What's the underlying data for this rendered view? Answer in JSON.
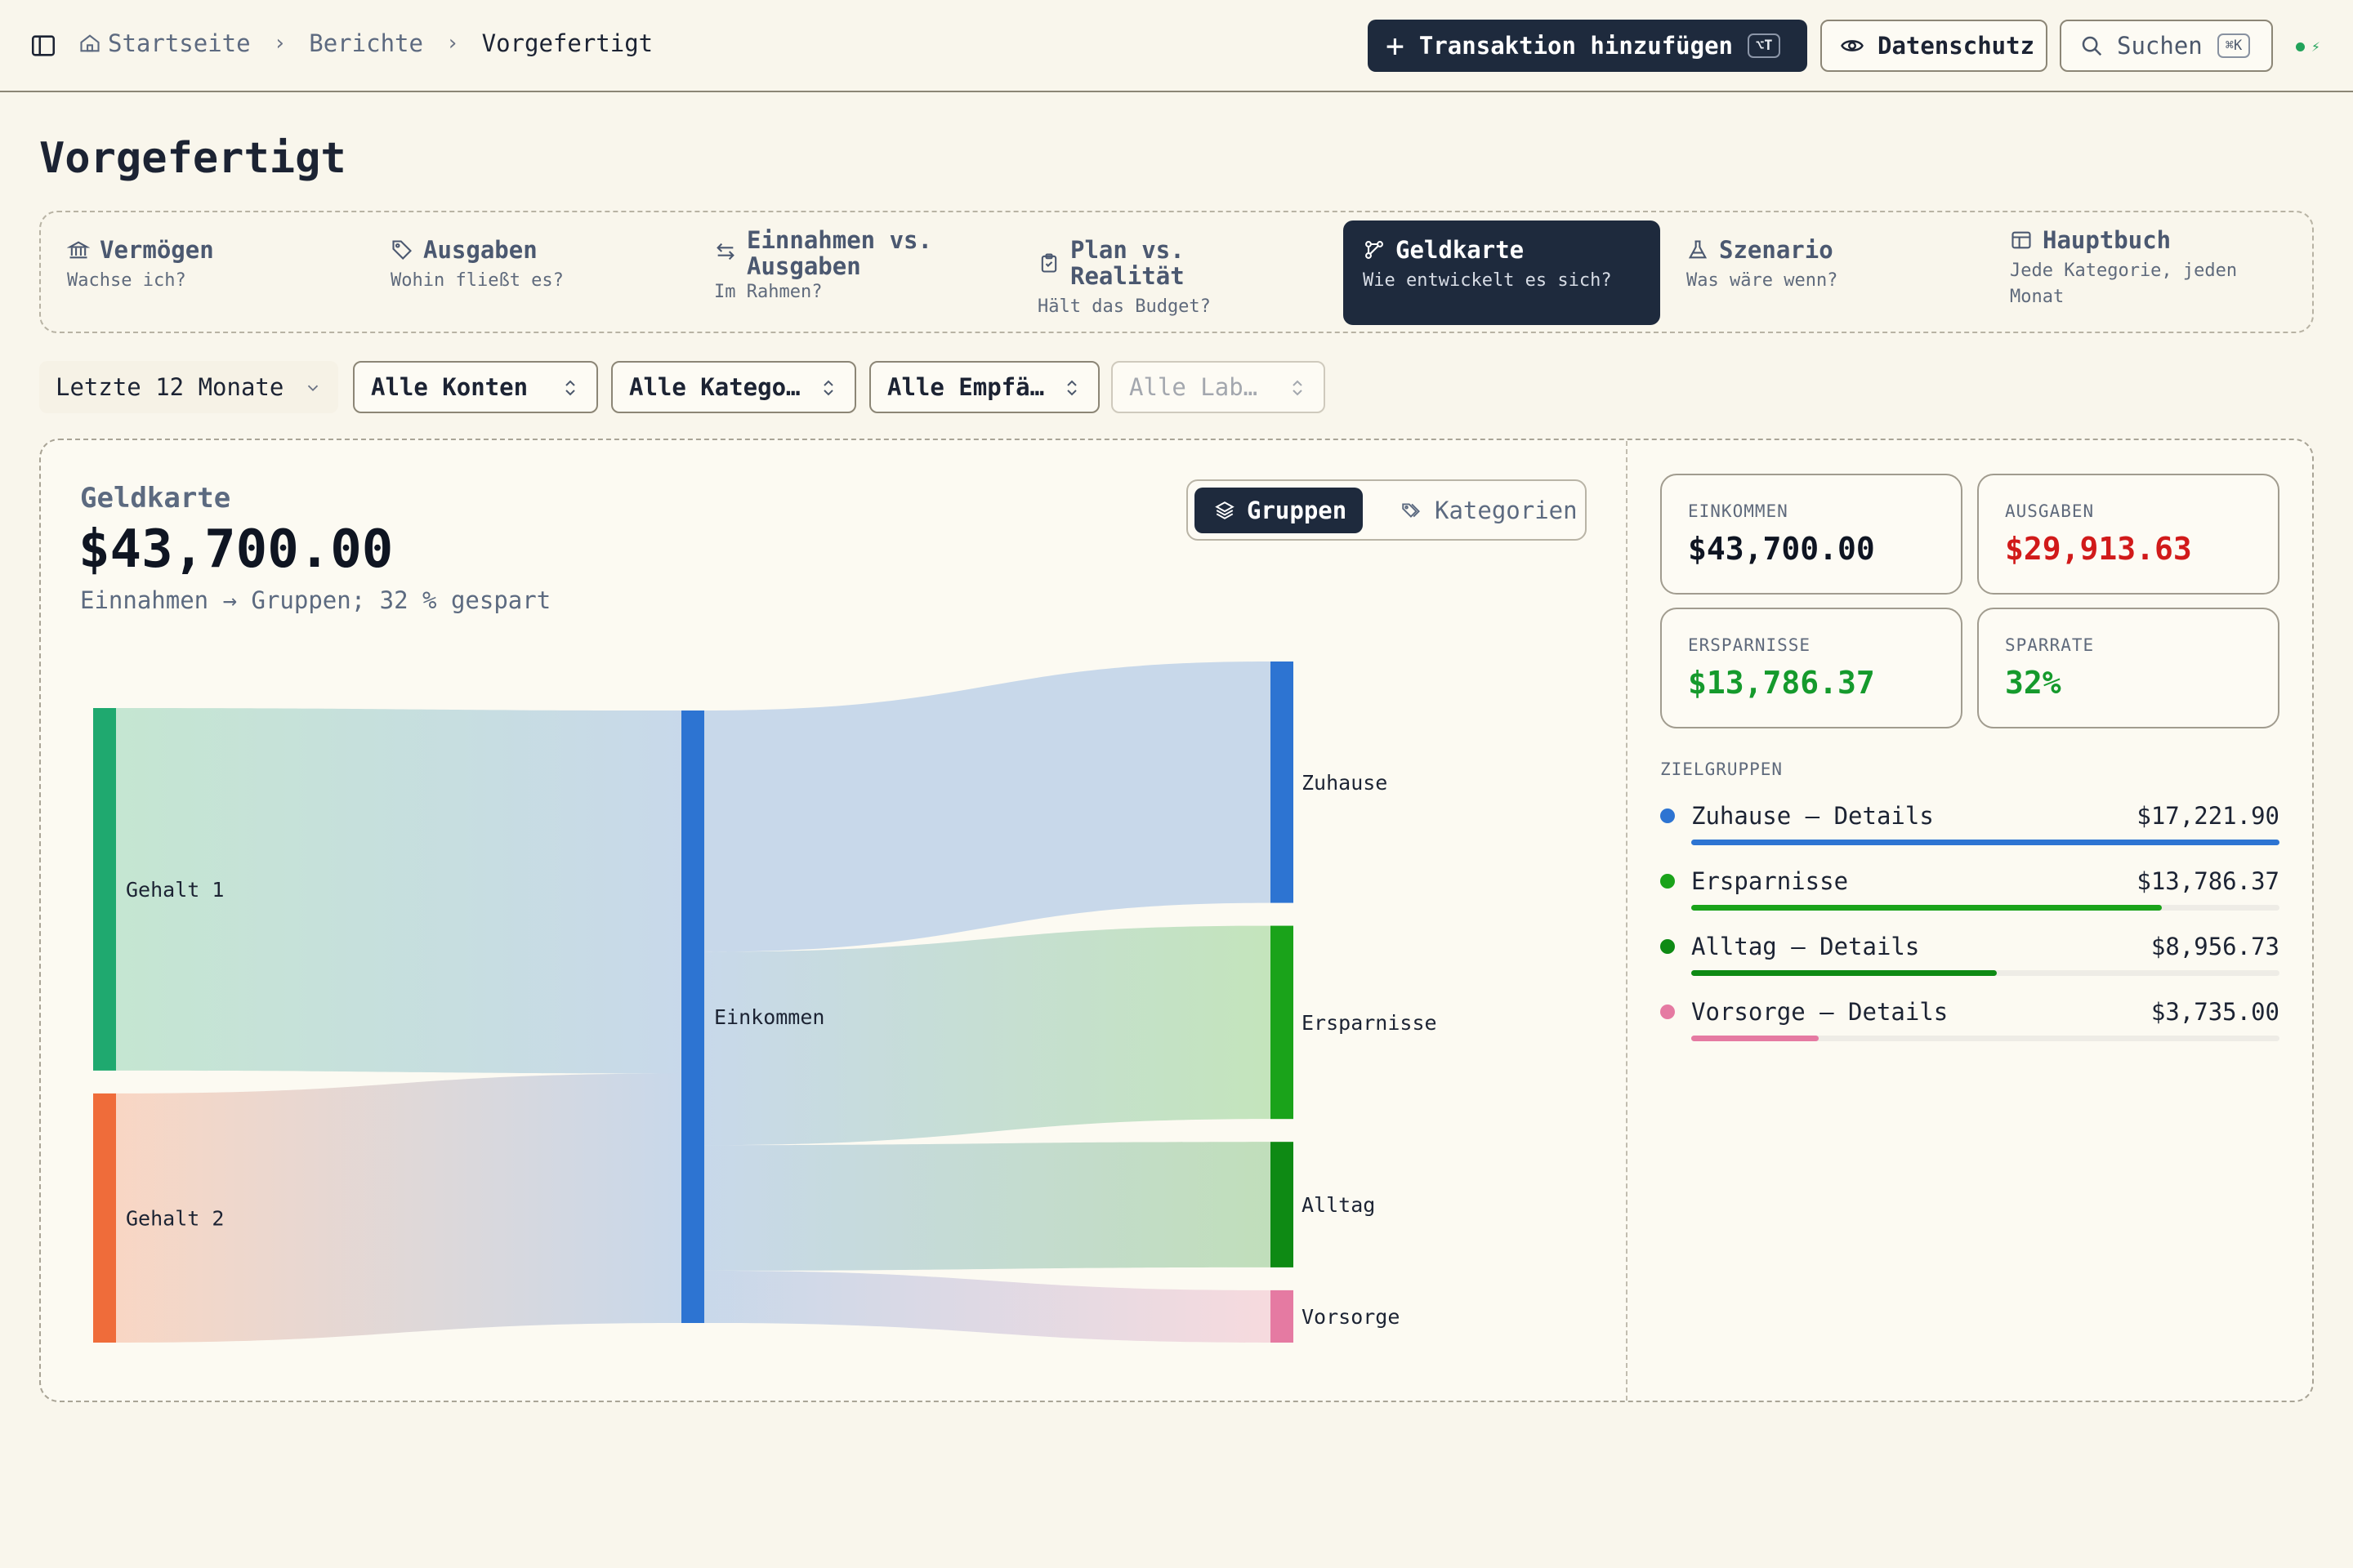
{
  "breadcrumb": [
    "Startseite",
    "Berichte",
    "Vorgefertigt"
  ],
  "header": {
    "add_transaction": "Transaktion hinzufügen",
    "add_transaction_kbd": "⌥T",
    "privacy": "Datenschutz",
    "search": "Suchen",
    "search_kbd": "⌘K"
  },
  "page_title": "Vorgefertigt",
  "report_tabs": [
    {
      "title": "Vermögen",
      "subtitle": "Wachse ich?",
      "icon": "bank-icon"
    },
    {
      "title": "Ausgaben",
      "subtitle": "Wohin fließt es?",
      "icon": "tag-icon"
    },
    {
      "title": "Einnahmen vs. Ausgaben",
      "subtitle": "Im Rahmen?",
      "icon": "arrows-icon"
    },
    {
      "title": "Plan vs. Realität",
      "subtitle": "Hält das Budget?",
      "icon": "clipboard-icon"
    },
    {
      "title": "Geldkarte",
      "subtitle": "Wie entwickelt es sich?",
      "icon": "flow-icon",
      "active": true
    },
    {
      "title": "Szenario",
      "subtitle": "Was wäre wenn?",
      "icon": "flask-icon"
    },
    {
      "title": "Hauptbuch",
      "subtitle": "Jede Kategorie, jeden Monat",
      "icon": "table-icon"
    }
  ],
  "filters": {
    "period": "Letzte 12 Monate",
    "accounts": "Alle Konten",
    "categories": "Alle Katego…",
    "payees": "Alle Empfä…",
    "labels": "Alle Lab…"
  },
  "moneymap": {
    "title": "Geldkarte",
    "amount": "$43,700.00",
    "subtitle": "Einnahmen → Gruppen; 32 % gespart",
    "toggle_groups": "Gruppen",
    "toggle_categories": "Kategorien"
  },
  "chart_data": {
    "type": "sankey",
    "sources": [
      {
        "name": "Gehalt 1",
        "value": 25900,
        "color": "#1fa96f"
      },
      {
        "name": "Gehalt 2",
        "value": 17800,
        "color": "#ef6c3a"
      }
    ],
    "hub": {
      "name": "Einkommen",
      "value": 43700,
      "color": "#2d74d2"
    },
    "targets": [
      {
        "name": "Zuhause",
        "value": 17221.9,
        "color": "#2d74d2"
      },
      {
        "name": "Ersparnisse",
        "value": 13786.37,
        "color": "#1aa31a"
      },
      {
        "name": "Alltag",
        "value": 8956.73,
        "color": "#0e8a14"
      },
      {
        "name": "Vorsorge",
        "value": 3735.0,
        "color": "#e57aa2"
      }
    ]
  },
  "stats": {
    "income_label": "EINKOMMEN",
    "income": "$43,700.00",
    "expenses_label": "AUSGABEN",
    "expenses": "$29,913.63",
    "savings_label": "ERSPARNISSE",
    "savings": "$13,786.37",
    "rate_label": "SPARRATE",
    "rate": "32%"
  },
  "target_groups": {
    "title": "ZIELGRUPPEN",
    "items": [
      {
        "name": "Zuhause — Details",
        "amount": "$17,221.90",
        "share": 1.0,
        "color": "#2d74d2"
      },
      {
        "name": "Ersparnisse",
        "amount": "$13,786.37",
        "share": 0.8,
        "color": "#1aa31a"
      },
      {
        "name": "Alltag — Details",
        "amount": "$8,956.73",
        "share": 0.52,
        "color": "#0e8a14"
      },
      {
        "name": "Vorsorge — Details",
        "amount": "$3,735.00",
        "share": 0.217,
        "color": "#e57aa2"
      }
    ]
  }
}
